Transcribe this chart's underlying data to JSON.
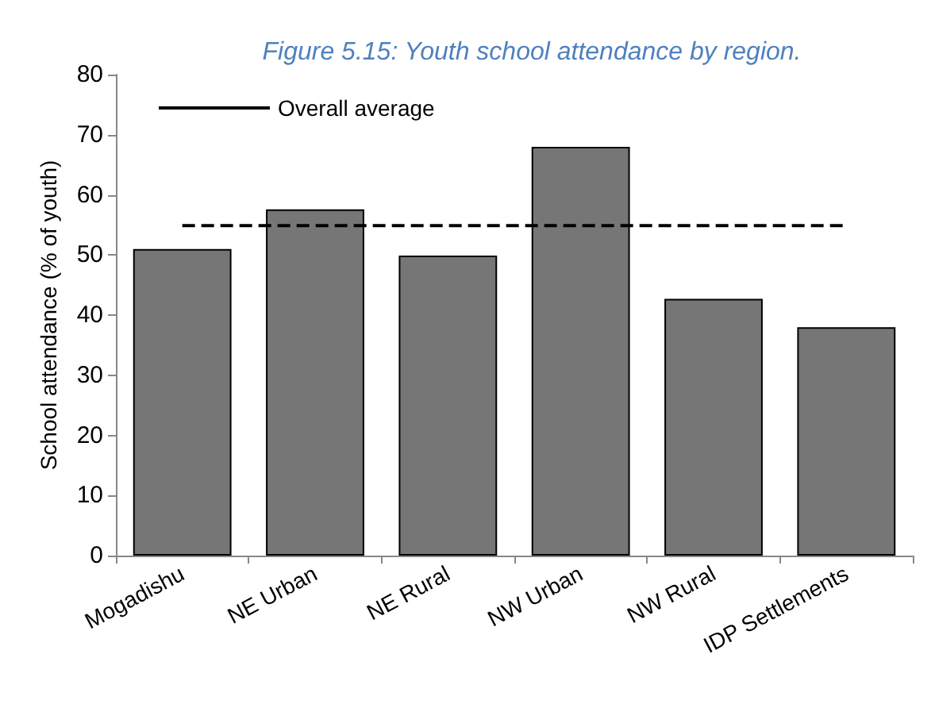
{
  "chart_data": {
    "type": "bar",
    "title": "Figure 5.15: Youth school attendance by region.",
    "ylabel": "School attendance (% of youth)",
    "categories": [
      "Mogadishu",
      "NE Urban",
      "NE Rural",
      "NW Urban",
      "NW Rural",
      "IDP Settlements"
    ],
    "values": [
      51,
      57.6,
      49.9,
      68,
      42.7,
      38
    ],
    "color": "#767676",
    "ylim": [
      0,
      80
    ],
    "yticks": [
      0,
      10,
      20,
      30,
      40,
      50,
      60,
      70,
      80
    ],
    "grid": false,
    "legend": "top left",
    "ref_lines": [
      {
        "axis": "y",
        "value": 54.9,
        "label": "Overall average",
        "color": "#000000",
        "line_style": "dashed"
      }
    ]
  }
}
